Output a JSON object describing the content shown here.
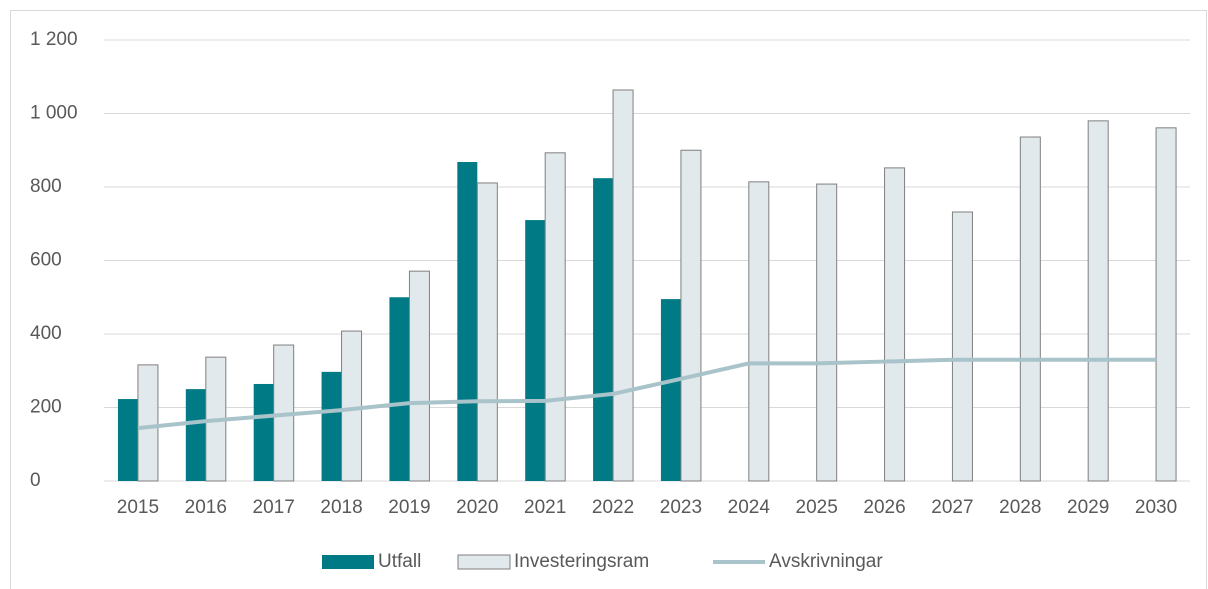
{
  "chart_data": {
    "type": "bar",
    "categories": [
      "2015",
      "2016",
      "2017",
      "2018",
      "2019",
      "2020",
      "2021",
      "2022",
      "2023",
      "2024",
      "2025",
      "2026",
      "2027",
      "2028",
      "2029",
      "2030"
    ],
    "series": [
      {
        "name": "Utfall",
        "color": "#007b86",
        "type": "bar",
        "values": [
          223,
          250,
          264,
          297,
          500,
          868,
          710,
          824,
          495,
          null,
          null,
          null,
          null,
          null,
          null,
          null
        ]
      },
      {
        "name": "Investeringsram",
        "color": "#e2e9ec",
        "type": "bar",
        "values": [
          316,
          337,
          370,
          408,
          571,
          811,
          893,
          1064,
          900,
          814,
          808,
          852,
          732,
          936,
          980,
          961
        ]
      },
      {
        "name": "Avskrivningar",
        "color": "#a8c3c9",
        "type": "line",
        "values": [
          144,
          163,
          178,
          193,
          212,
          217,
          218,
          237,
          278,
          320,
          320,
          325,
          330,
          330,
          330,
          330
        ]
      }
    ],
    "ylim": [
      0,
      1200
    ],
    "yticks": [
      0,
      200,
      400,
      600,
      800,
      {
        "value": 1000,
        "label": "1 000"
      },
      {
        "value": 1200,
        "label": "1 200"
      }
    ],
    "grid": true,
    "legend": "bottom"
  }
}
